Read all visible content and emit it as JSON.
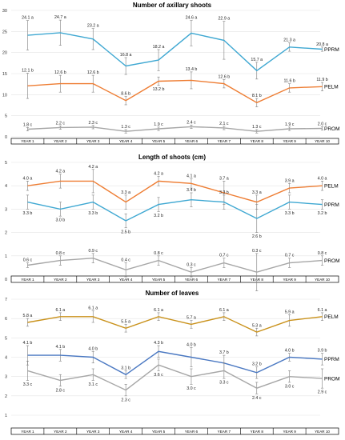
{
  "chart_data": [
    {
      "type": "line",
      "title": "Number of axillary shoots",
      "categories": [
        "YEAR 1",
        "YEAR 2",
        "YEAR 3",
        "YEAR 4",
        "YEAR 5",
        "YEAR 6",
        "YEAR 7",
        "YEAR 8",
        "YEAR 9",
        "YEAR 10"
      ],
      "ylim": [
        0,
        30
      ],
      "yticks": [
        0,
        5,
        10,
        15,
        20,
        25,
        30
      ],
      "series": [
        {
          "name": "PPRM",
          "color": "#3fa8d2",
          "values": [
            24.1,
            24.7,
            23.2,
            16.8,
            18.2,
            24.6,
            22.9,
            15.7,
            21.3,
            20.8
          ],
          "errors": [
            3.5,
            3.0,
            2.5,
            2.0,
            2.5,
            3.0,
            4.5,
            2.0,
            1.0,
            0.5
          ],
          "labels": [
            "24.1 a",
            "24.7 a",
            "23.2 a",
            "16.8 a",
            "18.2 a",
            "24.6 a",
            "22.9 a",
            "15.7 a",
            "21.3 a",
            "20.8 a"
          ],
          "label_pos": [
            "above",
            "above",
            "above",
            "above",
            "above",
            "above",
            "above",
            "above",
            "above",
            "above"
          ]
        },
        {
          "name": "PELM",
          "color": "#ee7d33",
          "values": [
            12.1,
            12.6,
            12.6,
            8.6,
            13.2,
            13.4,
            12.6,
            8.1,
            11.6,
            11.9
          ],
          "errors": [
            3.0,
            2.0,
            2.0,
            1.0,
            1.0,
            2.0,
            1.0,
            1.0,
            1.0,
            1.0
          ],
          "labels": [
            "12.1 b",
            "12.6 b",
            "12.6 b",
            "8.6 b",
            "13.2 b",
            "13.4 b",
            "12.6 b",
            "8.1 b",
            "11.6 b",
            "11.9 b"
          ],
          "label_pos": [
            "above",
            "above",
            "above",
            "above",
            "below",
            "above",
            "above",
            "above",
            "above",
            "above"
          ]
        },
        {
          "name": "PROM",
          "color": "#a6a6a6",
          "values": [
            1.8,
            2.2,
            2.3,
            1.3,
            1.9,
            2.4,
            2.1,
            1.3,
            1.9,
            2.0
          ],
          "errors": [
            0.4,
            0.4,
            0.4,
            0.4,
            0.4,
            0.4,
            0.4,
            0.4,
            0.4,
            0.4
          ],
          "labels": [
            "1.8 c",
            "2.2 c",
            "2.3 c",
            "1.3 c",
            "1.9 c",
            "2.4 c",
            "2.1 c",
            "1.3 c",
            "1.9 c",
            "2.0 c"
          ],
          "label_pos": [
            "above",
            "above",
            "above",
            "above",
            "above",
            "above",
            "above",
            "above",
            "above",
            "above"
          ]
        }
      ]
    },
    {
      "type": "line",
      "title": "Length of shoots (cm)",
      "categories": [
        "YEAR 1",
        "YEAR 2",
        "YEAR 3",
        "YEAR 4",
        "YEAR 5",
        "YEAR 6",
        "YEAR 7",
        "YEAR 8",
        "YEAR 9",
        "YEAR 10"
      ],
      "ylim": [
        0,
        5
      ],
      "yticks": [
        0,
        1,
        2,
        3,
        4,
        5
      ],
      "series": [
        {
          "name": "PELM",
          "color": "#ee7d33",
          "values": [
            4.0,
            4.2,
            4.2,
            3.3,
            4.2,
            4.1,
            3.7,
            3.3,
            3.9,
            4.0
          ],
          "errors": [
            0.2,
            0.3,
            0.5,
            0.3,
            0.2,
            0.2,
            0.5,
            0.3,
            0.2,
            0.2
          ],
          "labels": [
            "4.0 a",
            "4.2 a",
            "4.2 a",
            "3.3 a",
            "4.2 a",
            "4.1 a",
            "3.7 a",
            "3.3 a",
            "3.9 a",
            "4.0 a"
          ],
          "label_pos": [
            "above",
            "above",
            "above",
            "above",
            "above",
            "above",
            "above",
            "above",
            "above",
            "above"
          ]
        },
        {
          "name": "PPRM",
          "color": "#3fa8d2",
          "values": [
            3.3,
            3.0,
            3.3,
            2.5,
            3.2,
            3.4,
            3.3,
            2.6,
            3.3,
            3.2
          ],
          "errors": [
            0.3,
            0.3,
            0.3,
            0.3,
            0.3,
            0.3,
            0.3,
            0.6,
            0.3,
            0.2
          ],
          "labels": [
            "3.3 b",
            "3.0 b",
            "3.3 b",
            "2.5 b",
            "3.2 b",
            "3.4 b",
            "3.3 b",
            "2.6 b",
            "3.3 b",
            "3.2 b"
          ],
          "label_pos": [
            "below",
            "below",
            "below",
            "below",
            "below",
            "above",
            "above",
            "below",
            "below",
            "below"
          ]
        },
        {
          "name": "PROM",
          "color": "#a6a6a6",
          "values": [
            0.6,
            0.8,
            0.9,
            0.4,
            0.8,
            0.3,
            0.7,
            0.3,
            0.7,
            0.8
          ],
          "errors": [
            0.1,
            0.2,
            0.2,
            0.3,
            0.2,
            0.2,
            0.2,
            0.8,
            0.2,
            0.2
          ],
          "labels": [
            "0.6 c",
            "0.8 c",
            "0.9 c",
            "0.4 c",
            "0.8 c",
            "0.3 c",
            "0.7 c",
            "0.3 c",
            "0.7 c",
            "0.8 c"
          ],
          "label_pos": [
            "above",
            "above",
            "above",
            "above",
            "above",
            "above",
            "above",
            "above",
            "above",
            "above"
          ]
        }
      ]
    },
    {
      "type": "line",
      "title": "Number of leaves",
      "categories": [
        "YEAR 1",
        "YEAR 2",
        "YEAR 3",
        "YEAR 4",
        "YEAR 5",
        "YEAR 6",
        "YEAR 7",
        "YEAR 8",
        "YEAR 9",
        "YEAR 10"
      ],
      "ylim": [
        1,
        7
      ],
      "yticks": [
        1,
        2,
        3,
        4,
        5,
        6,
        7
      ],
      "series": [
        {
          "name": "PELM",
          "color": "#c9911a",
          "values": [
            5.8,
            6.1,
            6.1,
            5.5,
            6.1,
            5.7,
            6.1,
            5.3,
            5.9,
            6.1
          ],
          "errors": [
            0.2,
            0.2,
            0.3,
            0.2,
            0.2,
            0.2,
            0.2,
            0.2,
            0.3,
            0.2
          ],
          "labels": [
            "5.8 a",
            "6.1 a",
            "6.1 a",
            "5.5 a",
            "6.1 a",
            "5.7 a",
            "6.1 a",
            "5.3 a",
            "5.9 a",
            "6.1 a"
          ],
          "label_pos": [
            "above",
            "above",
            "above",
            "above",
            "above",
            "above",
            "above",
            "above",
            "above",
            "above"
          ]
        },
        {
          "name": "PPRM",
          "color": "#4a78c2",
          "values": [
            4.1,
            4.1,
            4.0,
            3.1,
            4.3,
            4.0,
            3.7,
            3.2,
            4.0,
            3.9
          ],
          "errors": [
            0.5,
            0.3,
            0.3,
            0.2,
            0.3,
            0.5,
            0.4,
            0.3,
            0.2,
            0.3
          ],
          "labels": [
            "4.1 b",
            "4.1 b",
            "4.0 b",
            "3.1 b",
            "4.3 b",
            "4.0 b",
            "3.7 b",
            "3.2 b",
            "4.0 b",
            "3.9 b"
          ],
          "label_pos": [
            "above",
            "above",
            "above",
            "above",
            "above",
            "above",
            "above",
            "above",
            "above",
            "above"
          ]
        },
        {
          "name": "PROM",
          "color": "#a6a6a6",
          "values": [
            3.3,
            2.8,
            3.1,
            2.3,
            3.6,
            3.0,
            3.3,
            2.4,
            3.0,
            2.9
          ],
          "errors": [
            0.5,
            0.3,
            0.3,
            0.3,
            0.3,
            0.4,
            0.4,
            0.3,
            0.3,
            0.5
          ],
          "labels": [
            "3.3 c",
            "2.8 c",
            "3.1 c",
            "2.3 c",
            "3.6 c",
            "3.0 c",
            "3.3 c",
            "2.4 c",
            "3.0 c",
            "2.9 c"
          ],
          "label_pos": [
            "below",
            "below",
            "below",
            "below",
            "below",
            "below",
            "below",
            "below",
            "below",
            "below"
          ]
        }
      ]
    }
  ]
}
